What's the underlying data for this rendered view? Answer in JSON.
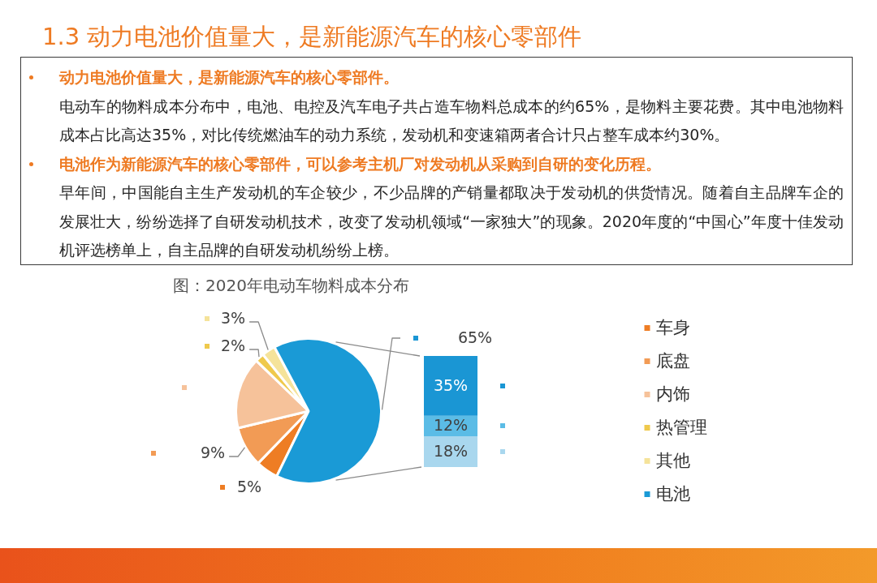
{
  "chart_data": [
    {
      "type": "other",
      "title": "1.3 动力电池价值量大，是新能源汽车的核心零部件",
      "annotations": [
        "动力电池价值量大，是新能源汽车的核心零部件。",
        "电动车的物料成本分布中，电池、电控及汽车电子共占造车物料总成本的约65%，是物料主要花费。其中电池物料成本占比高达35%，对比传统燃油车的动力系统，发动机和变速箱两者合计只占整车成本约30%。",
        "电池作为新能源汽车的核心零部件，可以参考主机厂对发动机从采购到自研的变化历程。",
        "早年间，中国能自主生产发动机的车企较少，不少品牌的产销量都取决于发动机的供货情况。随着自主品牌车企的发展壮大，纷纷选择了自研发动机技术，改变了发动机领域“一家独大”的现象。2020年度的“中国心”年度十佳发动机评选榜单上，自主品牌的自研发动机纷纷上榜。"
      ]
    },
    {
      "type": "pie",
      "title": "图：2020年电动车物料成本分布",
      "categories": [
        "车身",
        "底盘",
        "内饰",
        "热管理",
        "其他",
        "电池"
      ],
      "values": [
        5,
        9,
        16,
        2,
        3,
        65
      ],
      "colors": [
        "#ee7d24",
        "#f29b55",
        "#f6c29a",
        "#efc94c",
        "#f5e39a",
        "#1a9ad6"
      ],
      "value_labels": [
        "5%",
        "9%",
        null,
        "2%",
        "3%",
        null
      ],
      "legend": "right"
    },
    {
      "type": "bar",
      "stacked": true,
      "categories": [
        null
      ],
      "series": [
        {
          "color": "#a9d7ee",
          "values": [
            18
          ],
          "value_labels": [
            "18%"
          ]
        },
        {
          "color": "#5bbce6",
          "values": [
            12
          ],
          "value_labels": [
            "12%"
          ]
        },
        {
          "color": "#1a96d4",
          "values": [
            35
          ],
          "value_labels": [
            "35%"
          ]
        }
      ],
      "totals": [
        "65%"
      ]
    }
  ]
}
